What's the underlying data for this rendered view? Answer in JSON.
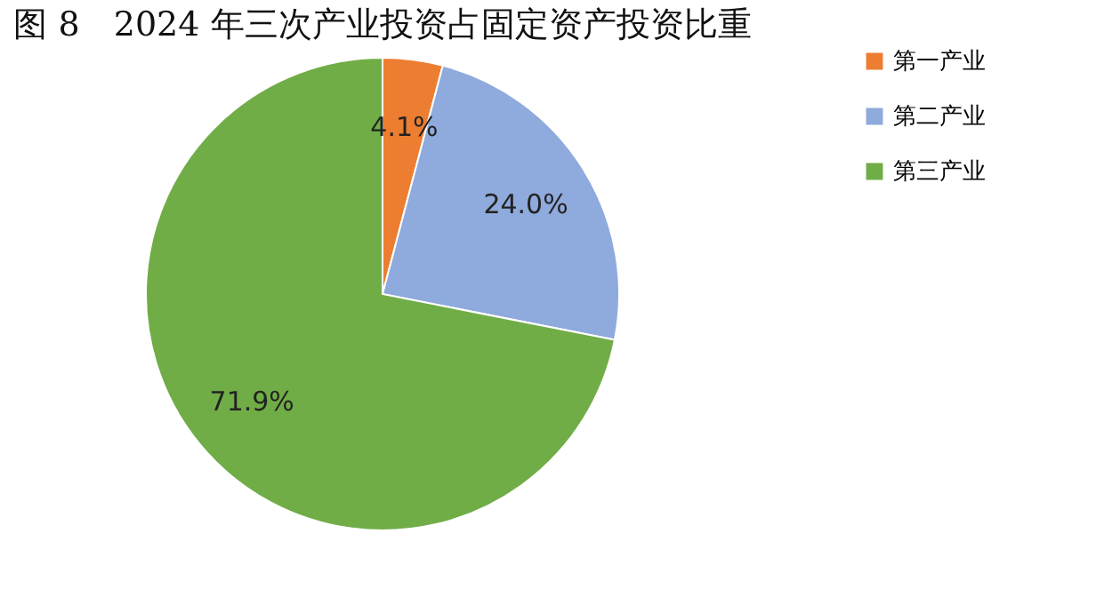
{
  "chart_data": {
    "type": "pie",
    "title": "图 8　2024 年三次产业投资占固定资产投资比重",
    "categories": [
      "第一产业",
      "第二产业",
      "第三产业"
    ],
    "values": [
      4.1,
      24.0,
      71.9
    ],
    "colors": [
      "#ed7d31",
      "#8faadc",
      "#70ad47"
    ],
    "value_labels": [
      "4.1%",
      "24.0%",
      "71.9%"
    ],
    "legend": "right"
  }
}
